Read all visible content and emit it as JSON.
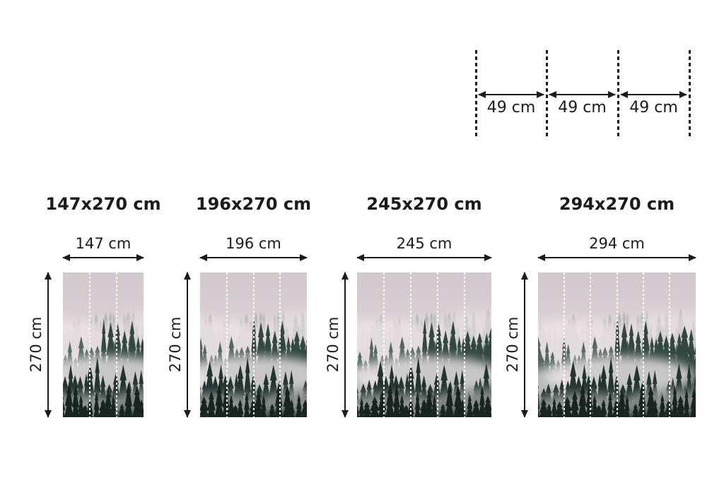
{
  "page": {
    "background": "#ffffff"
  },
  "panel_diagram": {
    "gap_labels": [
      "49 cm",
      "49 cm",
      "49 cm"
    ]
  },
  "products": [
    {
      "title": "147x270 cm",
      "width_label": "147 cm",
      "height_label": "270 cm",
      "panels": 3
    },
    {
      "title": "196x270 cm",
      "width_label": "196 cm",
      "height_label": "270 cm",
      "panels": 4
    },
    {
      "title": "245x270 cm",
      "width_label": "245 cm",
      "height_label": "270 cm",
      "panels": 5
    },
    {
      "title": "294x270 cm",
      "width_label": "294 cm",
      "height_label": "270 cm",
      "panels": 6
    }
  ],
  "preview_image": "foggy-forest-mural",
  "colors": {
    "ink": "#1b1b1b",
    "panel_divider": "#ffffff"
  }
}
